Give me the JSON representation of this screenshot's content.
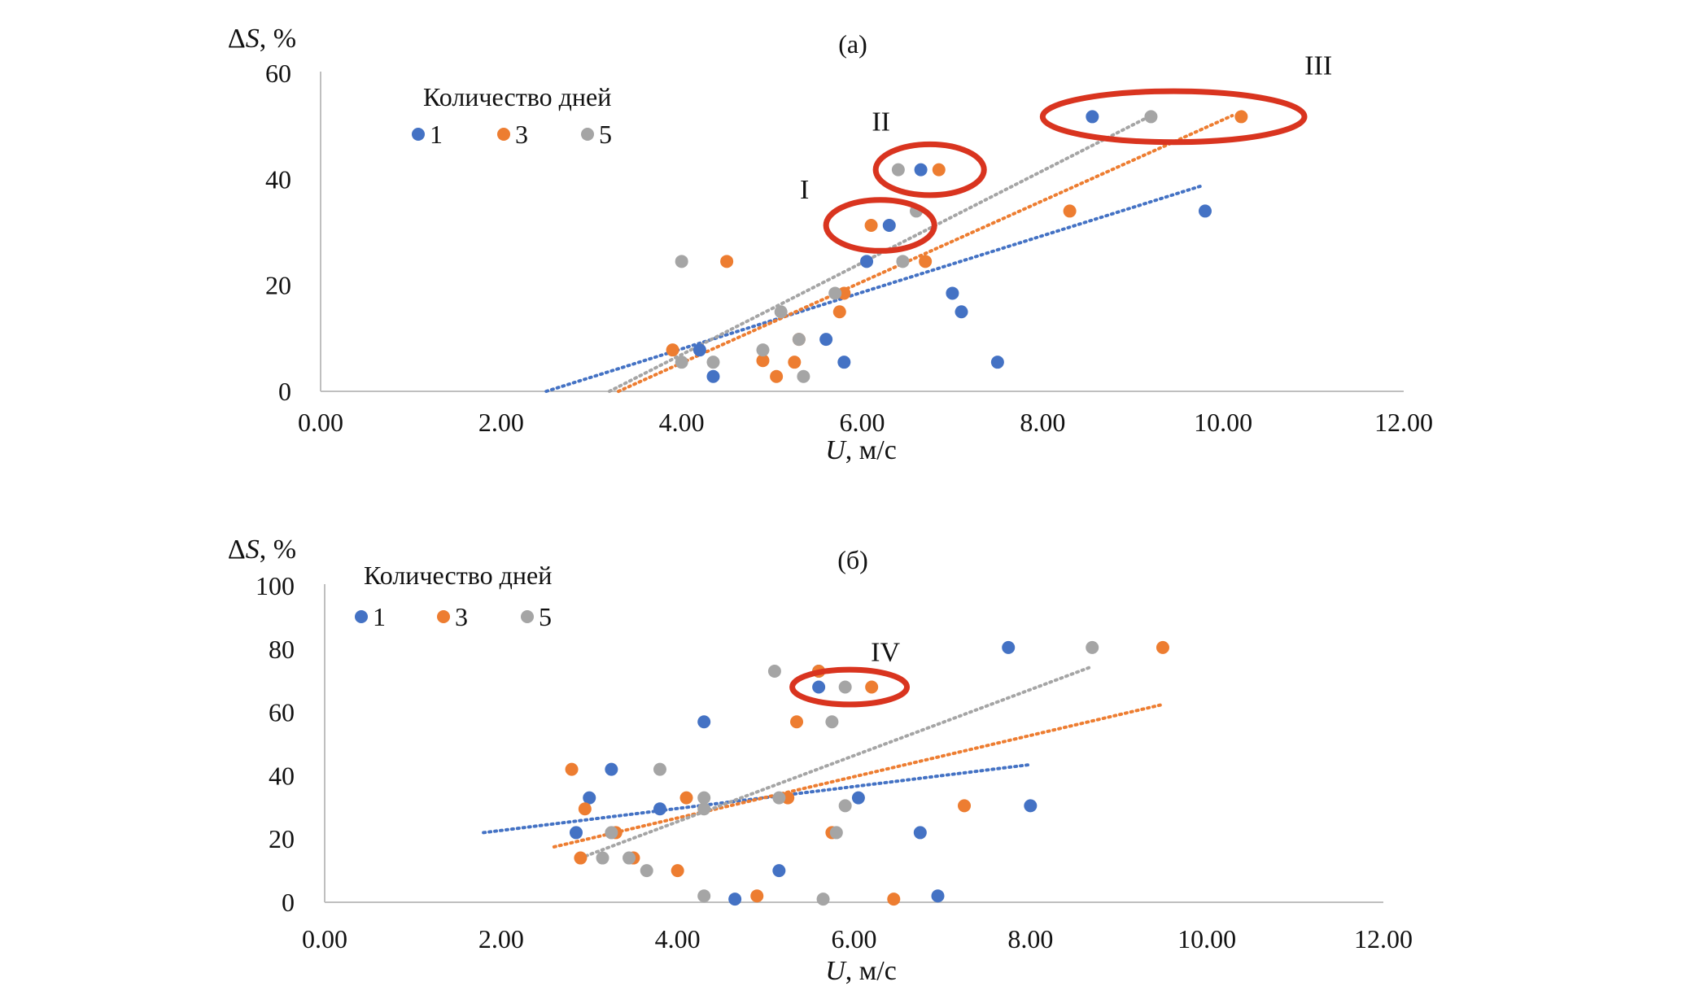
{
  "figure": {
    "colors": {
      "1": "#4472c4",
      "3": "#ed7d31",
      "5": "#a5a5a5",
      "axis": "#bfbfbf",
      "highlight": "#d9341f"
    }
  },
  "chart_data": [
    {
      "id": "a",
      "type": "scatter",
      "panel_label": "(a)",
      "ylabel": "ΔS, %",
      "xlabel": "U, м/с",
      "xlim": [
        0,
        12
      ],
      "ylim": [
        0,
        60
      ],
      "xticks": [
        "0.00",
        "2.00",
        "4.00",
        "6.00",
        "8.00",
        "10.00",
        "12.00"
      ],
      "yticks": [
        "0",
        "20",
        "40",
        "60"
      ],
      "grid": false,
      "legend": {
        "title": "Количество дней",
        "position": "top-left",
        "labels": [
          "1",
          "3",
          "5"
        ]
      },
      "series": [
        {
          "name": "1",
          "points": [
            [
              4.2,
              7.8
            ],
            [
              4.35,
              2.8
            ],
            [
              5.6,
              9.8
            ],
            [
              5.8,
              5.5
            ],
            [
              6.05,
              24.5
            ],
            [
              6.3,
              31.3
            ],
            [
              6.65,
              41.8
            ],
            [
              7.0,
              18.5
            ],
            [
              7.1,
              15.0
            ],
            [
              7.5,
              5.5
            ],
            [
              8.55,
              51.8
            ],
            [
              9.8,
              34.0
            ]
          ],
          "trend": {
            "x": [
              2.5,
              9.75
            ],
            "y": [
              0.0,
              38.7
            ]
          }
        },
        {
          "name": "3",
          "points": [
            [
              3.9,
              7.8
            ],
            [
              4.5,
              24.5
            ],
            [
              4.9,
              5.8
            ],
            [
              5.05,
              2.8
            ],
            [
              5.25,
              5.5
            ],
            [
              5.3,
              9.8
            ],
            [
              5.75,
              15.0
            ],
            [
              5.8,
              18.5
            ],
            [
              6.1,
              31.3
            ],
            [
              6.7,
              24.5
            ],
            [
              6.85,
              41.8
            ],
            [
              8.3,
              34.0
            ],
            [
              10.2,
              51.8
            ]
          ],
          "trend": {
            "x": [
              3.3,
              10.1
            ],
            "y": [
              0.0,
              52.0
            ]
          }
        },
        {
          "name": "5",
          "points": [
            [
              4.0,
              24.5
            ],
            [
              4.0,
              5.5
            ],
            [
              4.35,
              5.5
            ],
            [
              4.9,
              7.8
            ],
            [
              5.1,
              15.0
            ],
            [
              5.3,
              9.8
            ],
            [
              5.35,
              2.8
            ],
            [
              5.7,
              18.5
            ],
            [
              6.4,
              41.8
            ],
            [
              6.45,
              24.5
            ],
            [
              6.6,
              34.0
            ],
            [
              9.2,
              51.8
            ]
          ],
          "trend": {
            "x": [
              3.2,
              9.2
            ],
            "y": [
              0.0,
              52.0
            ]
          }
        }
      ],
      "annotations": [
        {
          "label": "I",
          "cx": 6.2,
          "cy": 31.3,
          "rx": 0.6,
          "ry": 4.8
        },
        {
          "label": "II",
          "cx": 6.75,
          "cy": 41.8,
          "rx": 0.6,
          "ry": 4.8
        },
        {
          "label": "III",
          "cx": 9.45,
          "cy": 51.8,
          "rx": 1.45,
          "ry": 4.8
        }
      ]
    },
    {
      "id": "b",
      "type": "scatter",
      "panel_label": "(б)",
      "ylabel": "ΔS, %",
      "xlabel": "U, м/с",
      "xlim": [
        0,
        12
      ],
      "ylim": [
        0,
        100
      ],
      "xticks": [
        "0.00",
        "2.00",
        "4.00",
        "6.00",
        "8.00",
        "10.00",
        "12.00"
      ],
      "yticks": [
        "0",
        "20",
        "40",
        "60",
        "80",
        "100"
      ],
      "grid": false,
      "legend": {
        "title": "Количество дней",
        "position": "top-left",
        "labels": [
          "1",
          "3",
          "5"
        ]
      },
      "series": [
        {
          "name": "1",
          "points": [
            [
              2.85,
              22
            ],
            [
              3.0,
              33
            ],
            [
              3.25,
              42
            ],
            [
              3.8,
              29.5
            ],
            [
              4.3,
              57
            ],
            [
              4.65,
              1
            ],
            [
              5.15,
              10
            ],
            [
              5.6,
              73
            ],
            [
              5.6,
              68
            ],
            [
              6.05,
              33
            ],
            [
              6.75,
              22
            ],
            [
              6.95,
              2
            ],
            [
              7.75,
              80.5
            ],
            [
              8.0,
              30.5
            ]
          ],
          "trend": {
            "x": [
              1.8,
              8.0
            ],
            "y": [
              22.0,
              43.5
            ]
          }
        },
        {
          "name": "3",
          "points": [
            [
              2.8,
              42
            ],
            [
              2.9,
              14
            ],
            [
              2.95,
              29.5
            ],
            [
              3.3,
              22
            ],
            [
              3.5,
              14
            ],
            [
              4.0,
              10
            ],
            [
              4.1,
              33
            ],
            [
              4.9,
              2
            ],
            [
              5.25,
              33
            ],
            [
              5.35,
              57
            ],
            [
              5.6,
              73
            ],
            [
              5.75,
              22
            ],
            [
              6.2,
              68
            ],
            [
              6.45,
              1
            ],
            [
              7.25,
              30.5
            ],
            [
              9.5,
              80.5
            ]
          ],
          "trend": {
            "x": [
              2.6,
              9.5
            ],
            "y": [
              17.5,
              62.5
            ]
          }
        },
        {
          "name": "5",
          "points": [
            [
              3.15,
              14
            ],
            [
              3.25,
              22
            ],
            [
              3.45,
              14
            ],
            [
              3.65,
              10
            ],
            [
              3.8,
              42
            ],
            [
              4.3,
              33
            ],
            [
              4.3,
              29.5
            ],
            [
              4.3,
              2
            ],
            [
              5.1,
              73
            ],
            [
              5.15,
              33
            ],
            [
              5.65,
              1
            ],
            [
              5.75,
              57
            ],
            [
              5.8,
              22
            ],
            [
              5.9,
              30.5
            ],
            [
              5.9,
              68
            ],
            [
              8.7,
              80.5
            ]
          ],
          "trend": {
            "x": [
              2.9,
              8.7
            ],
            "y": [
              14.0,
              74.5
            ]
          }
        }
      ],
      "annotations": [
        {
          "label": "IV",
          "cx": 5.95,
          "cy": 68,
          "rx": 0.65,
          "ry": 5.5
        }
      ]
    }
  ]
}
